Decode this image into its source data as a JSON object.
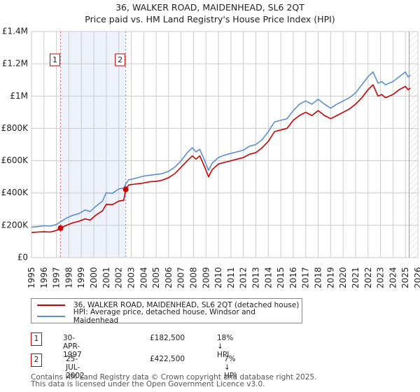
{
  "header": {
    "title": "36, WALKER ROAD, MAIDENHEAD, SL6 2QT",
    "subtitle": "Price paid vs. HM Land Registry's House Price Index (HPI)"
  },
  "chart_data": {
    "type": "line",
    "title": "36, WALKER ROAD, MAIDENHEAD, SL6 2QT",
    "subtitle": "Price paid vs. HM Land Registry's House Price Index (HPI)",
    "xlabel": "",
    "ylabel": "",
    "xlim": [
      1995,
      2026
    ],
    "ylim": [
      0,
      1400000
    ],
    "grid": true,
    "legend_position": "below",
    "y_ticks": [
      {
        "value": 0,
        "label": "£0"
      },
      {
        "value": 200000,
        "label": "£200K"
      },
      {
        "value": 400000,
        "label": "£400K"
      },
      {
        "value": 600000,
        "label": "£600K"
      },
      {
        "value": 800000,
        "label": "£800K"
      },
      {
        "value": 1000000,
        "label": "£1M"
      },
      {
        "value": 1200000,
        "label": "£1.2M"
      },
      {
        "value": 1400000,
        "label": "£1.4M"
      }
    ],
    "x_ticks": [
      "1995",
      "1996",
      "1997",
      "1998",
      "1999",
      "2000",
      "2001",
      "2002",
      "2003",
      "2004",
      "2005",
      "2006",
      "2007",
      "2008",
      "2009",
      "2010",
      "2011",
      "2012",
      "2013",
      "2014",
      "2015",
      "2016",
      "2017",
      "2018",
      "2019",
      "2020",
      "2021",
      "2022",
      "2023",
      "2024",
      "2025",
      "2026"
    ],
    "shaded_region": {
      "from": 1997.33,
      "to": 2002.56,
      "color": "#eef2fb"
    },
    "hatched_future_from": 2025.3,
    "series": [
      {
        "name": "36, WALKER ROAD, MAIDENHEAD, SL6 2QT (detached house)",
        "color": "#cc0000",
        "x": [
          1995,
          1995.5,
          1996,
          1996.5,
          1997,
          1997.33,
          1997.8,
          1998.3,
          1998.8,
          1999.3,
          1999.7,
          2000.2,
          2000.7,
          2001.0,
          2001.5,
          2002.0,
          2002.4,
          2002.56,
          2002.8,
          2003.3,
          2004.0,
          2004.5,
          2005.0,
          2005.5,
          2006.0,
          2006.5,
          2007.0,
          2007.5,
          2007.9,
          2008.2,
          2008.5,
          2008.9,
          2009.2,
          2009.5,
          2010.0,
          2010.5,
          2011.0,
          2011.5,
          2012.0,
          2012.5,
          2013.0,
          2013.5,
          2014.0,
          2014.5,
          2015.0,
          2015.5,
          2016.0,
          2016.5,
          2017.0,
          2017.5,
          2018.0,
          2018.5,
          2019.0,
          2019.5,
          2020.0,
          2020.5,
          2021.0,
          2021.5,
          2022.0,
          2022.4,
          2022.8,
          2023.1,
          2023.4,
          2023.7,
          2024.0,
          2024.5,
          2025.0,
          2025.2,
          2025.4
        ],
        "values": [
          155000,
          158000,
          160000,
          158000,
          168000,
          182500,
          200000,
          215000,
          225000,
          240000,
          232000,
          265000,
          290000,
          330000,
          328000,
          350000,
          355000,
          422500,
          450000,
          455000,
          462000,
          470000,
          472000,
          480000,
          495000,
          520000,
          560000,
          600000,
          630000,
          610000,
          630000,
          560000,
          500000,
          545000,
          580000,
          590000,
          600000,
          610000,
          620000,
          640000,
          650000,
          680000,
          720000,
          780000,
          790000,
          800000,
          850000,
          880000,
          900000,
          880000,
          910000,
          880000,
          860000,
          880000,
          900000,
          920000,
          950000,
          990000,
          1040000,
          1070000,
          1000000,
          1010000,
          990000,
          1000000,
          1010000,
          1040000,
          1060000,
          1040000,
          1050000
        ]
      },
      {
        "name": "HPI: Average price, detached house, Windsor and Maidenhead",
        "color": "#5b8fd0",
        "x": [
          1995,
          1995.5,
          1996,
          1996.5,
          1997,
          1997.33,
          1997.8,
          1998.3,
          1998.8,
          1999.3,
          1999.7,
          2000.2,
          2000.7,
          2001.0,
          2001.5,
          2002.0,
          2002.4,
          2002.56,
          2002.8,
          2003.3,
          2004.0,
          2004.5,
          2005.0,
          2005.5,
          2006.0,
          2006.5,
          2007.0,
          2007.5,
          2007.9,
          2008.2,
          2008.5,
          2008.9,
          2009.2,
          2009.5,
          2010.0,
          2010.5,
          2011.0,
          2011.5,
          2012.0,
          2012.5,
          2013.0,
          2013.5,
          2014.0,
          2014.5,
          2015.0,
          2015.5,
          2016.0,
          2016.5,
          2017.0,
          2017.5,
          2018.0,
          2018.5,
          2019.0,
          2019.5,
          2020.0,
          2020.5,
          2021.0,
          2021.5,
          2022.0,
          2022.4,
          2022.8,
          2023.1,
          2023.4,
          2023.7,
          2024.0,
          2024.5,
          2025.0,
          2025.2,
          2025.4
        ],
        "values": [
          188000,
          192000,
          197000,
          195000,
          205000,
          222000,
          245000,
          262000,
          272000,
          295000,
          285000,
          320000,
          350000,
          402000,
          398000,
          425000,
          430000,
          455000,
          482000,
          490000,
          505000,
          510000,
          515000,
          520000,
          535000,
          560000,
          600000,
          650000,
          680000,
          655000,
          670000,
          600000,
          540000,
          585000,
          620000,
          635000,
          645000,
          655000,
          665000,
          690000,
          700000,
          730000,
          780000,
          840000,
          850000,
          860000,
          910000,
          950000,
          970000,
          950000,
          980000,
          950000,
          925000,
          950000,
          970000,
          990000,
          1020000,
          1070000,
          1120000,
          1150000,
          1080000,
          1090000,
          1070000,
          1080000,
          1090000,
          1120000,
          1150000,
          1120000,
          1130000
        ]
      }
    ],
    "markers": [
      {
        "id": "1",
        "x": 1997.33,
        "value": 182500
      },
      {
        "id": "2",
        "x": 2002.56,
        "value": 422500
      }
    ]
  },
  "legend": {
    "items": [
      {
        "label": "36, WALKER ROAD, MAIDENHEAD, SL6 2QT (detached house)",
        "color": "#cc0000"
      },
      {
        "label": "HPI: Average price, detached house, Windsor and Maidenhead",
        "color": "#5b8fd0"
      }
    ]
  },
  "sales": [
    {
      "num": "1",
      "date": "30-APR-1997",
      "price": "£182,500",
      "hpi": "18% ↓ HPI"
    },
    {
      "num": "2",
      "date": "25-JUL-2002",
      "price": "£422,500",
      "hpi": "7% ↓ HPI"
    }
  ],
  "footer": {
    "line1": "Contains HM Land Registry data © Crown copyright and database right 2025.",
    "line2": "This data is licensed under the Open Government Licence v3.0."
  }
}
